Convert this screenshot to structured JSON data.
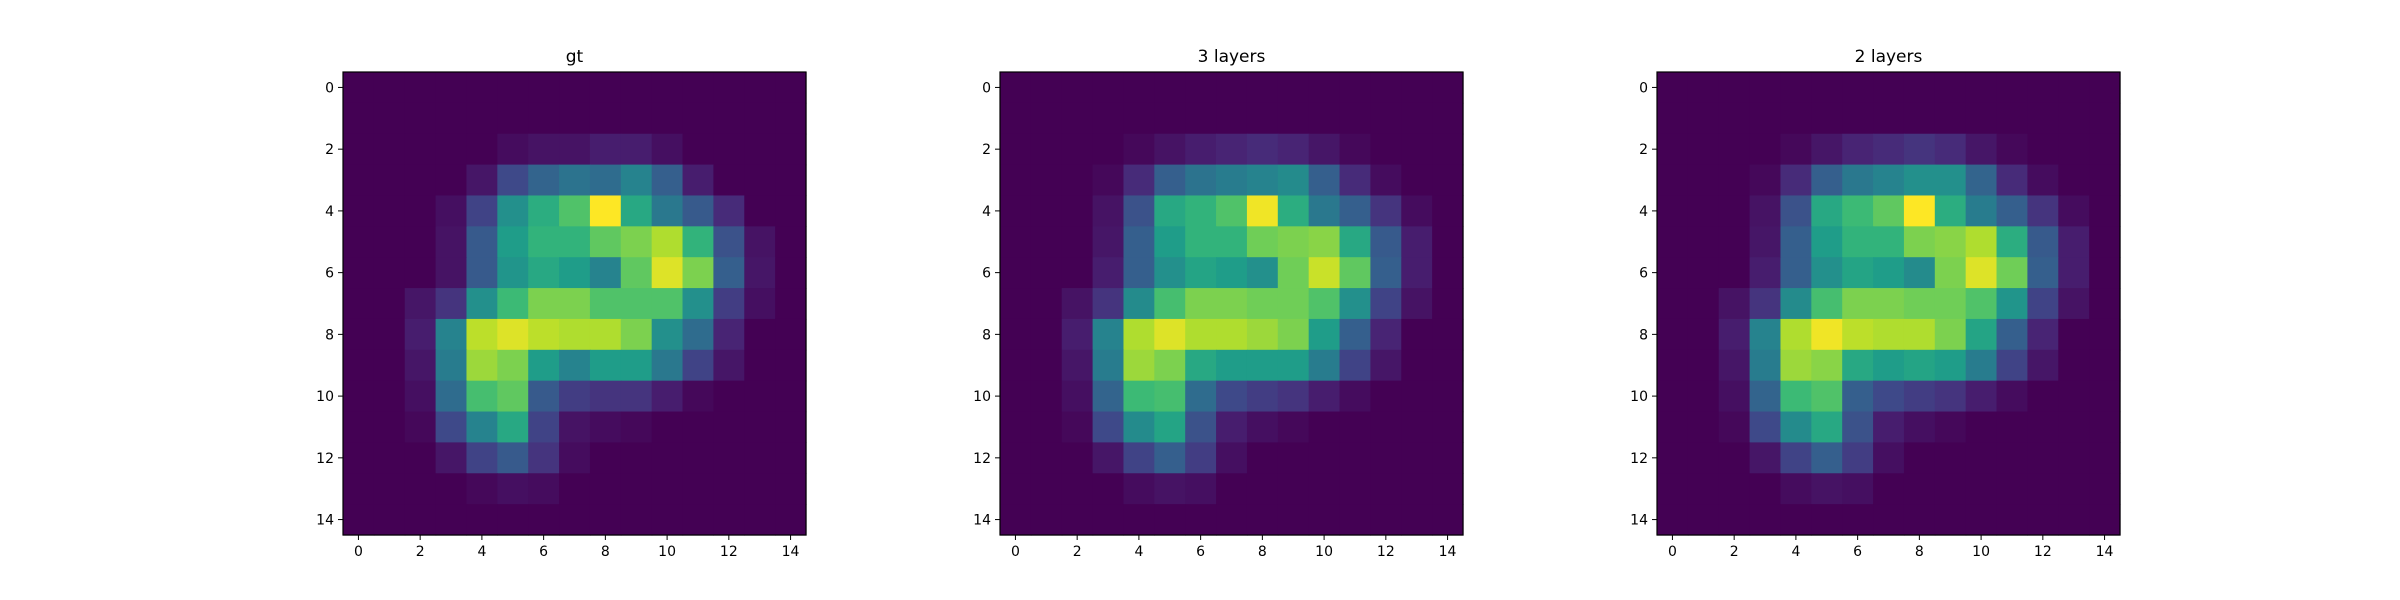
{
  "chart_data": [
    {
      "type": "heatmap",
      "title": "gt",
      "colormap": "viridis",
      "vmin": 0,
      "vmax": 1,
      "xlim": [
        -0.5,
        14.5
      ],
      "ylim": [
        14.5,
        -0.5
      ],
      "xticks": [
        "0",
        "2",
        "4",
        "6",
        "8",
        "10",
        "12",
        "14"
      ],
      "yticks": [
        "0",
        "2",
        "4",
        "6",
        "8",
        "10",
        "12",
        "14"
      ],
      "grid": false,
      "values": [
        [
          0,
          0,
          0,
          0,
          0,
          0,
          0,
          0,
          0,
          0,
          0,
          0,
          0,
          0,
          0
        ],
        [
          0,
          0,
          0,
          0,
          0,
          0,
          0,
          0,
          0,
          0,
          0,
          0,
          0,
          0,
          0
        ],
        [
          0,
          0,
          0,
          0,
          0,
          0.03,
          0.05,
          0.05,
          0.08,
          0.08,
          0.04,
          0,
          0,
          0,
          0
        ],
        [
          0,
          0,
          0,
          0,
          0.06,
          0.22,
          0.32,
          0.38,
          0.35,
          0.45,
          0.3,
          0.08,
          0,
          0,
          0
        ],
        [
          0,
          0,
          0,
          0.04,
          0.2,
          0.5,
          0.62,
          0.72,
          1.0,
          0.6,
          0.4,
          0.28,
          0.12,
          0,
          0
        ],
        [
          0,
          0,
          0,
          0.05,
          0.28,
          0.55,
          0.65,
          0.65,
          0.75,
          0.8,
          0.88,
          0.65,
          0.25,
          0.05,
          0
        ],
        [
          0,
          0,
          0,
          0.05,
          0.28,
          0.52,
          0.6,
          0.55,
          0.45,
          0.75,
          0.95,
          0.8,
          0.3,
          0.06,
          0
        ],
        [
          0,
          0,
          0.06,
          0.15,
          0.5,
          0.68,
          0.8,
          0.8,
          0.72,
          0.72,
          0.72,
          0.5,
          0.18,
          0.04,
          0
        ],
        [
          0,
          0,
          0.08,
          0.45,
          0.9,
          0.95,
          0.9,
          0.88,
          0.88,
          0.8,
          0.5,
          0.35,
          0.1,
          0,
          0
        ],
        [
          0,
          0,
          0.06,
          0.42,
          0.85,
          0.8,
          0.55,
          0.45,
          0.55,
          0.55,
          0.4,
          0.2,
          0.06,
          0,
          0
        ],
        [
          0,
          0,
          0.04,
          0.35,
          0.7,
          0.75,
          0.28,
          0.18,
          0.15,
          0.15,
          0.08,
          0.02,
          0,
          0,
          0
        ],
        [
          0,
          0,
          0.02,
          0.22,
          0.45,
          0.6,
          0.2,
          0.05,
          0.03,
          0.02,
          0,
          0,
          0,
          0,
          0
        ],
        [
          0,
          0,
          0,
          0.06,
          0.2,
          0.28,
          0.15,
          0.03,
          0,
          0,
          0,
          0,
          0,
          0,
          0
        ],
        [
          0,
          0,
          0,
          0,
          0.02,
          0.04,
          0.03,
          0,
          0,
          0,
          0,
          0,
          0,
          0,
          0
        ],
        [
          0,
          0,
          0,
          0,
          0,
          0,
          0,
          0,
          0,
          0,
          0,
          0,
          0,
          0,
          0
        ]
      ]
    },
    {
      "type": "heatmap",
      "title": "3 layers",
      "colormap": "viridis",
      "vmin": 0,
      "vmax": 1,
      "xlim": [
        -0.5,
        14.5
      ],
      "ylim": [
        14.5,
        -0.5
      ],
      "xticks": [
        "0",
        "2",
        "4",
        "6",
        "8",
        "10",
        "12",
        "14"
      ],
      "yticks": [
        "0",
        "2",
        "4",
        "6",
        "8",
        "10",
        "12",
        "14"
      ],
      "grid": false,
      "values": [
        [
          0,
          0,
          0,
          0,
          0,
          0,
          0,
          0,
          0,
          0,
          0,
          0,
          0,
          0,
          0
        ],
        [
          0,
          0,
          0,
          0,
          0,
          0,
          0,
          0,
          0,
          0,
          0,
          0,
          0,
          0,
          0
        ],
        [
          0,
          0,
          0,
          0,
          0.02,
          0.05,
          0.08,
          0.1,
          0.12,
          0.1,
          0.06,
          0.02,
          0,
          0,
          0
        ],
        [
          0,
          0,
          0,
          0.02,
          0.12,
          0.3,
          0.38,
          0.42,
          0.45,
          0.48,
          0.3,
          0.12,
          0.03,
          0,
          0
        ],
        [
          0,
          0,
          0,
          0.05,
          0.25,
          0.6,
          0.65,
          0.72,
          0.98,
          0.62,
          0.4,
          0.3,
          0.15,
          0.03,
          0
        ],
        [
          0,
          0,
          0,
          0.06,
          0.3,
          0.55,
          0.65,
          0.65,
          0.78,
          0.8,
          0.82,
          0.6,
          0.28,
          0.08,
          0
        ],
        [
          0,
          0,
          0,
          0.08,
          0.3,
          0.5,
          0.58,
          0.55,
          0.5,
          0.78,
          0.92,
          0.75,
          0.3,
          0.08,
          0
        ],
        [
          0,
          0,
          0.05,
          0.15,
          0.48,
          0.7,
          0.8,
          0.8,
          0.78,
          0.78,
          0.72,
          0.5,
          0.2,
          0.05,
          0
        ],
        [
          0,
          0,
          0.08,
          0.45,
          0.88,
          0.95,
          0.88,
          0.88,
          0.85,
          0.8,
          0.55,
          0.3,
          0.1,
          0,
          0
        ],
        [
          0,
          0,
          0.06,
          0.42,
          0.85,
          0.8,
          0.6,
          0.55,
          0.55,
          0.55,
          0.42,
          0.2,
          0.06,
          0,
          0
        ],
        [
          0,
          0,
          0.04,
          0.32,
          0.68,
          0.7,
          0.35,
          0.22,
          0.18,
          0.15,
          0.08,
          0.03,
          0,
          0,
          0
        ],
        [
          0,
          0,
          0.02,
          0.22,
          0.48,
          0.58,
          0.25,
          0.08,
          0.04,
          0.02,
          0,
          0,
          0,
          0,
          0
        ],
        [
          0,
          0,
          0,
          0.06,
          0.2,
          0.3,
          0.18,
          0.04,
          0,
          0,
          0,
          0,
          0,
          0,
          0
        ],
        [
          0,
          0,
          0,
          0,
          0.03,
          0.05,
          0.04,
          0,
          0,
          0,
          0,
          0,
          0,
          0,
          0
        ],
        [
          0,
          0,
          0,
          0,
          0,
          0,
          0,
          0,
          0,
          0,
          0,
          0,
          0,
          0,
          0
        ]
      ]
    },
    {
      "type": "heatmap",
      "title": "2 layers",
      "colormap": "viridis",
      "vmin": 0,
      "vmax": 1,
      "xlim": [
        -0.5,
        14.5
      ],
      "ylim": [
        14.5,
        -0.5
      ],
      "xticks": [
        "0",
        "2",
        "4",
        "6",
        "8",
        "10",
        "12",
        "14"
      ],
      "yticks": [
        "0",
        "2",
        "4",
        "6",
        "8",
        "10",
        "12",
        "14"
      ],
      "grid": false,
      "values": [
        [
          0,
          0,
          0,
          0,
          0,
          0,
          0,
          0,
          0,
          0,
          0,
          0,
          0,
          0,
          0
        ],
        [
          0,
          0,
          0,
          0,
          0,
          0,
          0,
          0,
          0,
          0,
          0,
          0,
          0,
          0,
          0
        ],
        [
          0,
          0,
          0,
          0,
          0.02,
          0.06,
          0.1,
          0.12,
          0.15,
          0.12,
          0.06,
          0.02,
          0,
          0,
          0
        ],
        [
          0,
          0,
          0,
          0.02,
          0.12,
          0.3,
          0.4,
          0.45,
          0.5,
          0.5,
          0.32,
          0.12,
          0.03,
          0,
          0
        ],
        [
          0,
          0,
          0,
          0.05,
          0.25,
          0.6,
          0.68,
          0.75,
          1.0,
          0.62,
          0.42,
          0.3,
          0.15,
          0.03,
          0
        ],
        [
          0,
          0,
          0,
          0.06,
          0.3,
          0.55,
          0.65,
          0.65,
          0.8,
          0.82,
          0.88,
          0.62,
          0.28,
          0.08,
          0
        ],
        [
          0,
          0,
          0,
          0.08,
          0.3,
          0.5,
          0.58,
          0.55,
          0.48,
          0.8,
          0.95,
          0.78,
          0.3,
          0.08,
          0
        ],
        [
          0,
          0,
          0.05,
          0.15,
          0.48,
          0.7,
          0.8,
          0.8,
          0.78,
          0.78,
          0.72,
          0.52,
          0.2,
          0.05,
          0
        ],
        [
          0,
          0,
          0.08,
          0.45,
          0.88,
          0.98,
          0.9,
          0.88,
          0.88,
          0.8,
          0.58,
          0.3,
          0.1,
          0,
          0
        ],
        [
          0,
          0,
          0.06,
          0.42,
          0.85,
          0.82,
          0.6,
          0.55,
          0.58,
          0.55,
          0.42,
          0.2,
          0.06,
          0,
          0
        ],
        [
          0,
          0,
          0.04,
          0.32,
          0.68,
          0.72,
          0.3,
          0.22,
          0.18,
          0.15,
          0.08,
          0.03,
          0,
          0,
          0
        ],
        [
          0,
          0,
          0.02,
          0.22,
          0.48,
          0.6,
          0.25,
          0.08,
          0.04,
          0.02,
          0,
          0,
          0,
          0,
          0
        ],
        [
          0,
          0,
          0,
          0.06,
          0.2,
          0.3,
          0.18,
          0.04,
          0,
          0,
          0,
          0,
          0,
          0,
          0
        ],
        [
          0,
          0,
          0,
          0,
          0.03,
          0.05,
          0.04,
          0,
          0,
          0,
          0,
          0,
          0,
          0,
          0
        ],
        [
          0,
          0,
          0,
          0,
          0,
          0,
          0,
          0,
          0,
          0,
          0,
          0,
          0,
          0,
          0
        ]
      ]
    }
  ]
}
